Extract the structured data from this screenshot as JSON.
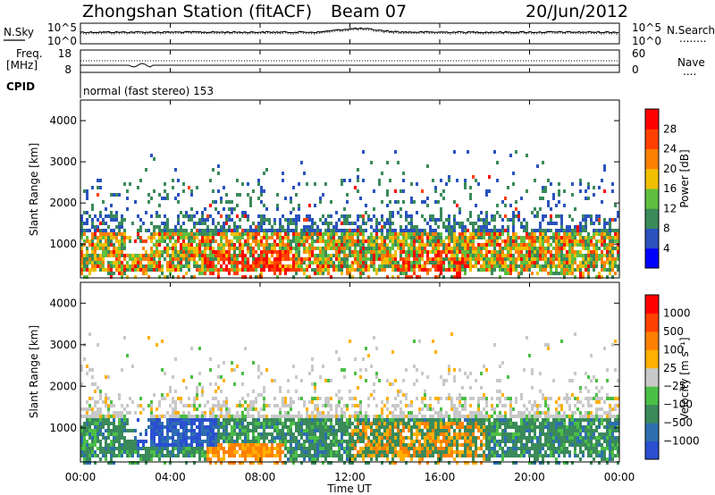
{
  "header": {
    "station": "Zhongshan Station (fitACF)",
    "beam": "Beam 07",
    "date": "20/Jun/2012"
  },
  "top_panel": {
    "left_label": "N.Sky",
    "left_ticks": [
      "10^5",
      "10^0"
    ],
    "right_ticks": [
      "10^5",
      "10^0"
    ],
    "right_label": "N.Search",
    "right_label_line": "........"
  },
  "freq_panel": {
    "left_label_1": "Freq.",
    "left_label_2": "[MHz]",
    "left_ticks": [
      "18",
      "8"
    ],
    "right_ticks": [
      "60",
      "0"
    ],
    "right_label": "Nave",
    "right_label_line": "...."
  },
  "cpid": {
    "label": "CPID",
    "text": "normal (fast stereo) 153"
  },
  "power_panel": {
    "ylabel": "Slant Range [km]",
    "yticks": [
      "4000",
      "3000",
      "2000",
      "1000"
    ],
    "colorbar_label": "Power [dB]",
    "colorbar_ticks": [
      "28",
      "24",
      "20",
      "16",
      "12",
      "8",
      "4"
    ],
    "colors": [
      "#0000ff",
      "#2a52be",
      "#3a8a5a",
      "#5fbf3f",
      "#f0c000",
      "#ff8000",
      "#ff4000",
      "#ff0000"
    ]
  },
  "velocity_panel": {
    "ylabel": "Slant Range [km]",
    "yticks": [
      "4000",
      "3000",
      "2000",
      "1000"
    ],
    "colorbar_label": "Velocity [m s⁻¹]",
    "colorbar_ticks": [
      "1000",
      "500",
      "100",
      "25",
      "−25",
      "−100",
      "−500",
      "−1000"
    ],
    "colors": [
      "#2a4fd0",
      "#2e6fb0",
      "#3a8a5a",
      "#4bbf45",
      "#c8c8c8",
      "#ffb000",
      "#ff8000",
      "#ff4000",
      "#ff0000"
    ]
  },
  "xaxis": {
    "ticks": [
      "00:00",
      "04:00",
      "08:00",
      "12:00",
      "16:00",
      "20:00",
      "00:00"
    ],
    "label": "Time UT"
  },
  "chart_data": {
    "type": "heatmap",
    "x": [
      "00:00",
      "04:00",
      "08:00",
      "12:00",
      "16:00",
      "20:00",
      "00:00"
    ],
    "xlabel": "Time UT",
    "ylabel": "Slant Range [km]",
    "ylim": [
      180,
      4500
    ],
    "panels": [
      {
        "name": "Power [dB]",
        "zlim": [
          0,
          32
        ],
        "zticks": [
          4,
          8,
          12,
          16,
          20,
          24,
          28
        ]
      },
      {
        "name": "Velocity [m s⁻¹]",
        "zticks": [
          1000,
          500,
          100,
          25,
          -25,
          -100,
          -500,
          -1000
        ]
      }
    ]
  }
}
